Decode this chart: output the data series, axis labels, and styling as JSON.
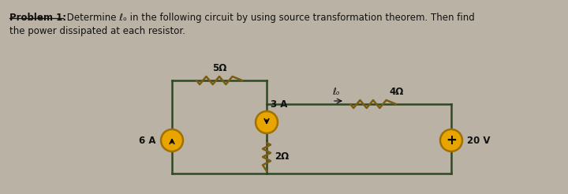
{
  "bg_color": "#bab3a5",
  "wire_color": "#2a4a22",
  "source_fill": "#e8a500",
  "source_edge": "#a07000",
  "resistor_color": "#7a5c10",
  "text_color": "#111111",
  "label_6A": "6 A",
  "label_3A": "3 A",
  "label_20V": "20 V",
  "label_5ohm": "5Ω",
  "label_2ohm": "2Ω",
  "label_4ohm": "4Ω",
  "label_io": "ℓₒ",
  "title_bold": "Problem 1:",
  "title_rest": " Determine ℓₒ in the following circuit by using source transformation theorem. Then find",
  "subtitle": "the power dissipated at each resistor.",
  "xL": 218,
  "xM": 338,
  "xR": 572,
  "yTO": 102,
  "yTI": 132,
  "yMID": 178,
  "yBOT": 220,
  "r_src": 14,
  "lw_wire": 1.8,
  "lw_res": 1.8
}
